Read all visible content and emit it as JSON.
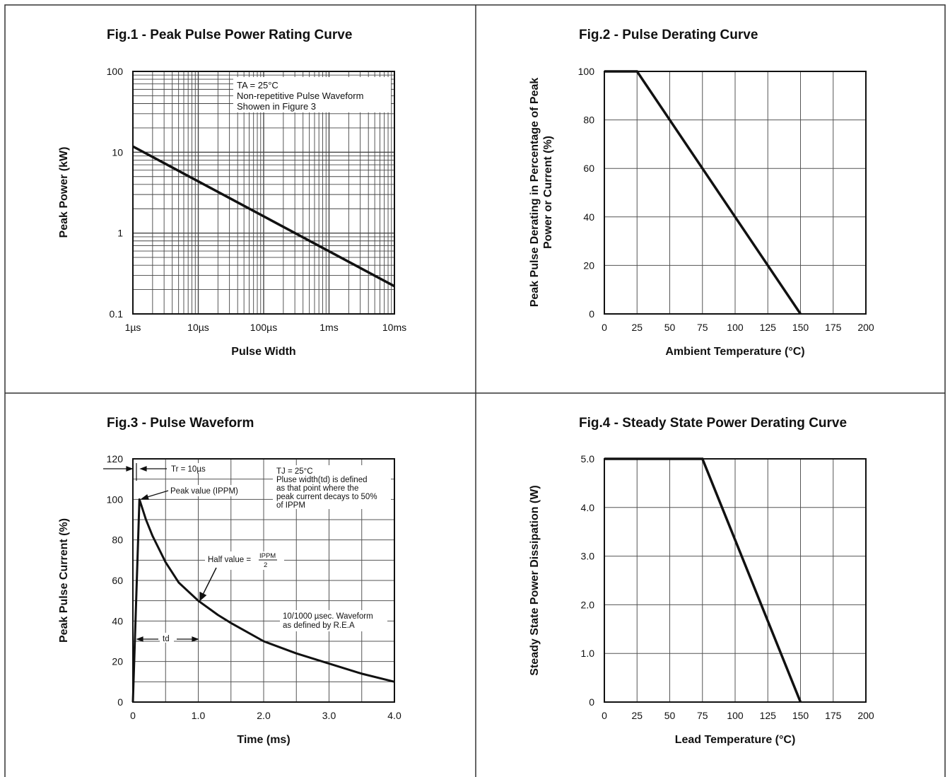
{
  "chart_data": [
    {
      "type": "line",
      "title": "Fig.1 - Peak Pulse Power Rating Curve",
      "xlabel": "Pulse Width",
      "ylabel": "Peak Power (kW)",
      "x_scale": "log",
      "y_scale": "log",
      "xlim": [
        "1µs",
        "10ms"
      ],
      "ylim": [
        0.1,
        100
      ],
      "x_ticks": [
        "1µs",
        "10µs",
        "100µs",
        "1ms",
        "10ms"
      ],
      "y_ticks": [
        "0.1",
        "1",
        "10",
        "100"
      ],
      "grid": true,
      "annotation": [
        "TA = 25°C",
        "Non-repetitive Pulse Waveform",
        "Showen in Figure 3"
      ],
      "series": [
        {
          "x_us": [
            1,
            10000
          ],
          "y_kw": [
            11.8,
            0.22
          ]
        }
      ]
    },
    {
      "type": "line",
      "title": "Fig.2 - Pulse Derating Curve",
      "xlabel": "Ambient Temperature (°C)",
      "ylabel": [
        "Peak Pulse Derating in Percentage of Peak",
        "Power or Current (%)"
      ],
      "xlim": [
        0,
        200
      ],
      "ylim": [
        0,
        100
      ],
      "x_ticks": [
        "0",
        "25",
        "50",
        "75",
        "100",
        "125",
        "150",
        "175",
        "200"
      ],
      "y_ticks": [
        "0",
        "20",
        "40",
        "60",
        "80",
        "100"
      ],
      "grid": true,
      "series": [
        {
          "x": [
            0,
            25,
            150
          ],
          "y": [
            100,
            100,
            0
          ]
        }
      ]
    },
    {
      "type": "line",
      "title": "Fig.3 - Pulse Waveform",
      "xlabel": "Time (ms)",
      "ylabel": "Peak Pulse Current (%)",
      "xlim": [
        0,
        4.0
      ],
      "ylim": [
        0,
        120
      ],
      "x_ticks": [
        "0",
        "1.0",
        "2.0",
        "3.0",
        "4.0"
      ],
      "y_ticks": [
        "0",
        "20",
        "40",
        "60",
        "80",
        "100",
        "120"
      ],
      "grid": true,
      "annotations": {
        "tr": "Tr = 10µs",
        "peak": "Peak value (IPPM)",
        "conditions": [
          "TJ = 25°C",
          "Pluse width(td) is defined",
          "as that point where the",
          "peak current decays to 50%",
          "of IPPM"
        ],
        "half": "Half value =",
        "half_num": "IPPM",
        "half_den": "2",
        "waveform": [
          "10/1000 µsec. Waveform",
          "as defined by R.E.A"
        ],
        "td": "td"
      },
      "series": [
        {
          "x": [
            0,
            0.1,
            0.2,
            0.3,
            0.5,
            0.7,
            1.0,
            1.3,
            1.5,
            2.0,
            2.5,
            3.0,
            3.5,
            4.0
          ],
          "y": [
            0,
            100,
            90,
            82,
            69,
            59,
            50,
            43,
            39,
            30,
            24,
            19,
            14,
            10
          ]
        }
      ]
    },
    {
      "type": "line",
      "title": "Fig.4 - Steady State Power Derating Curve",
      "xlabel": "Lead Temperature (°C)",
      "ylabel": "Steady State Power Dissipation (W)",
      "xlim": [
        0,
        200
      ],
      "ylim": [
        0,
        5.0
      ],
      "x_ticks": [
        "0",
        "25",
        "50",
        "75",
        "100",
        "125",
        "150",
        "175",
        "200"
      ],
      "y_ticks": [
        "0",
        "1.0",
        "2.0",
        "3.0",
        "4.0",
        "5.0"
      ],
      "grid": true,
      "series": [
        {
          "x": [
            0,
            75,
            150
          ],
          "y": [
            5.0,
            5.0,
            0
          ]
        }
      ]
    }
  ]
}
